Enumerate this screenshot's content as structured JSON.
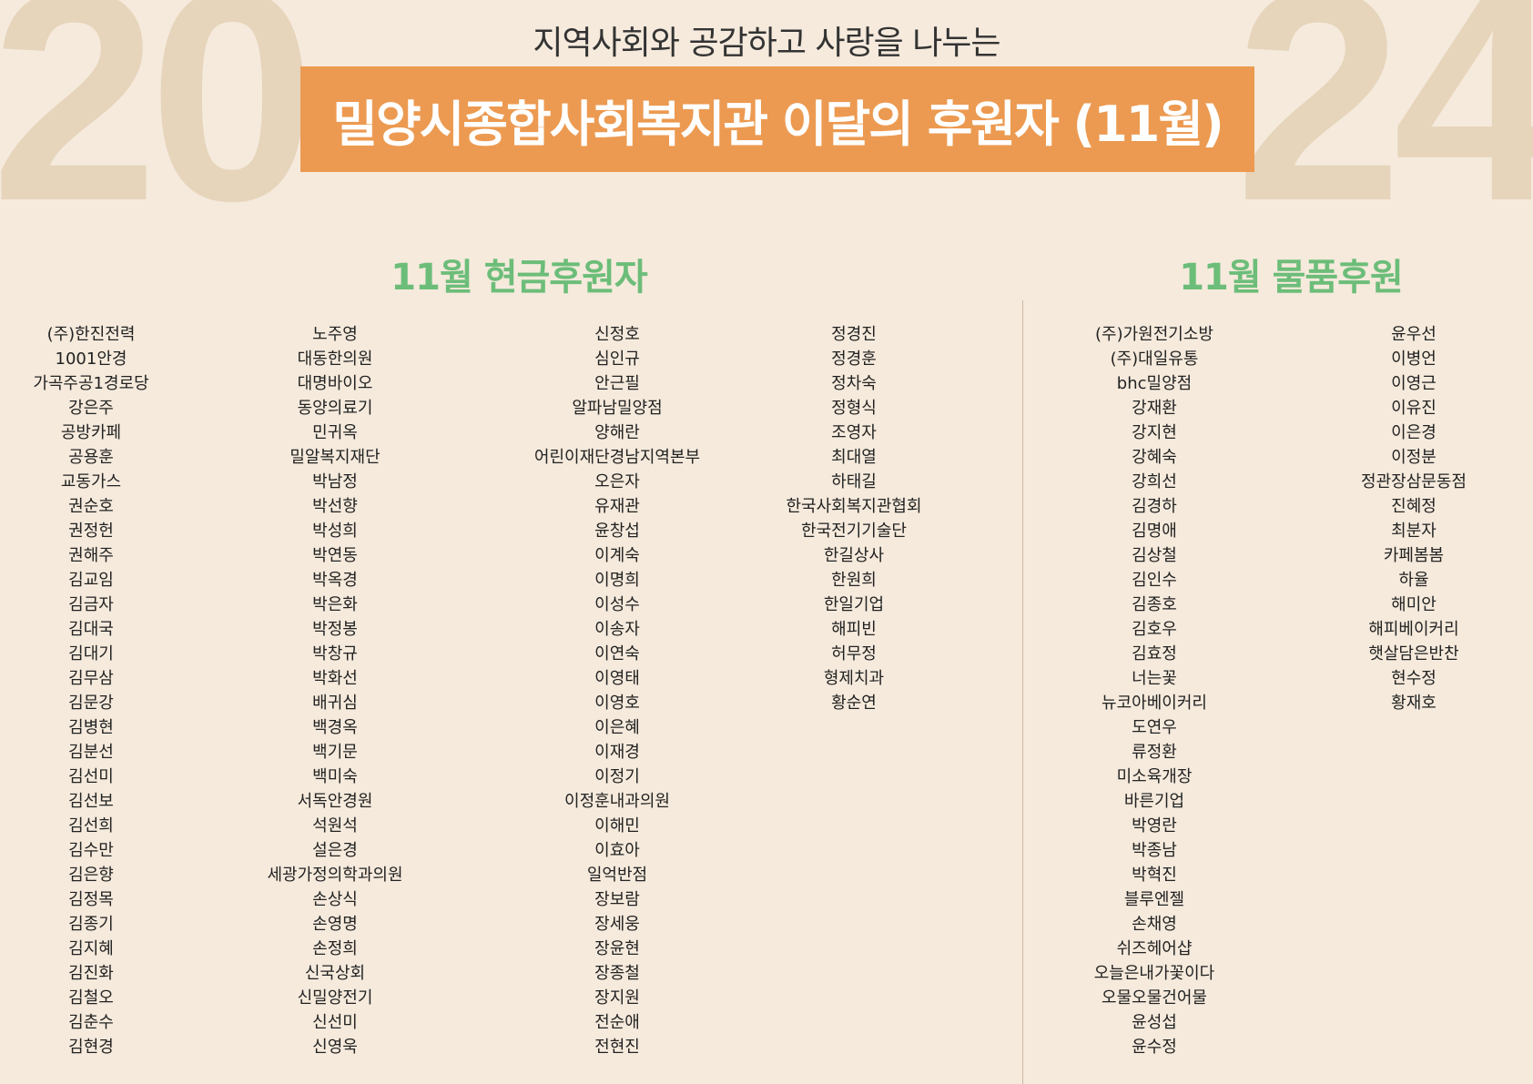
{
  "decor": {
    "year_left": "20",
    "year_right": "24"
  },
  "header": {
    "subtitle": "지역사회와 공감하고 사랑을 나누는",
    "title": "밀양시종합사회복지관 이달의 후원자 (11월)"
  },
  "colors": {
    "background": "#f5eadc",
    "title_bar": "#ec9a51",
    "heading": "#6cbd79",
    "year_decor": "#e6d4bb"
  },
  "cash": {
    "heading": "11월 현금후원자",
    "columns": [
      [
        "(주)한진전력",
        "1001안경",
        "가곡주공1경로당",
        "강은주",
        "공방카페",
        "공용훈",
        "교동가스",
        "권순호",
        "권정헌",
        "권해주",
        "김교임",
        "김금자",
        "김대국",
        "김대기",
        "김무삼",
        "김문강",
        "김병현",
        "김분선",
        "김선미",
        "김선보",
        "김선희",
        "김수만",
        "김은향",
        "김정목",
        "김종기",
        "김지혜",
        "김진화",
        "김철오",
        "김춘수",
        "김현경"
      ],
      [
        "노주영",
        "대동한의원",
        "대명바이오",
        "동양의료기",
        "민귀옥",
        "밀알복지재단",
        "박남정",
        "박선향",
        "박성희",
        "박연동",
        "박옥경",
        "박은화",
        "박정봉",
        "박창규",
        "박화선",
        "배귀심",
        "백경옥",
        "백기문",
        "백미숙",
        "서독안경원",
        "석원석",
        "설은경",
        "세광가정의학과의원",
        "손상식",
        "손영명",
        "손정희",
        "신국상회",
        "신밀양전기",
        "신선미",
        "신영욱"
      ],
      [
        "신정호",
        "심인규",
        "안근필",
        "알파남밀양점",
        "양해란",
        "어린이재단경남지역본부",
        "오은자",
        "유재관",
        "윤창섭",
        "이계숙",
        "이명희",
        "이성수",
        "이송자",
        "이연숙",
        "이영태",
        "이영호",
        "이은혜",
        "이재경",
        "이정기",
        "이정훈내과의원",
        "이해민",
        "이효아",
        "일억반점",
        "장보람",
        "장세웅",
        "장윤현",
        "장종철",
        "장지원",
        "전순애",
        "전현진"
      ],
      [
        "정경진",
        "정경훈",
        "정차숙",
        "정형식",
        "조영자",
        "최대열",
        "하태길",
        "한국사회복지관협회",
        "한국전기기술단",
        "한길상사",
        "한원희",
        "한일기업",
        "해피빈",
        "허무정",
        "형제치과",
        "황순연"
      ]
    ]
  },
  "goods": {
    "heading": "11월 물품후원",
    "columns": [
      [
        "(주)가원전기소방",
        "(주)대일유통",
        "bhc밀양점",
        "강재환",
        "강지현",
        "강혜숙",
        "강희선",
        "김경하",
        "김명애",
        "김상철",
        "김인수",
        "김종호",
        "김호우",
        "김효정",
        "너는꽃",
        "뉴코아베이커리",
        "도연우",
        "류정환",
        "미소육개장",
        "바른기업",
        "박영란",
        "박종남",
        "박혁진",
        "블루엔젤",
        "손채영",
        "쉬즈헤어샵",
        "오늘은내가꽃이다",
        "오물오물건어물",
        "윤성섭",
        "윤수정"
      ],
      [
        "윤우선",
        "이병언",
        "이영근",
        "이유진",
        "이은경",
        "이정분",
        "정관장삼문동점",
        "진혜정",
        "최분자",
        "카페봄봄",
        "하율",
        "해미안",
        "해피베이커리",
        "햇살담은반찬",
        "현수정",
        "황재호"
      ]
    ]
  }
}
